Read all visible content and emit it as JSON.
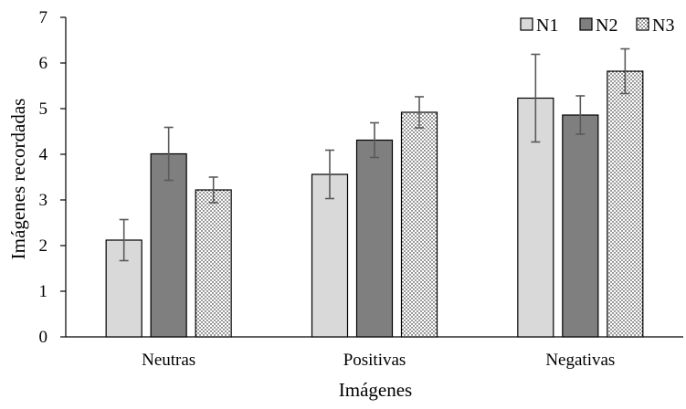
{
  "chart_data": {
    "type": "bar",
    "title": "",
    "xlabel": "Imágenes",
    "ylabel": "Imágenes recordadas",
    "ylim": [
      0,
      7
    ],
    "yticks": [
      0,
      1,
      2,
      3,
      4,
      5,
      6,
      7
    ],
    "categories": [
      "Neutras",
      "Positivas",
      "Negativas"
    ],
    "series": [
      {
        "name": "N1",
        "values": [
          2.12,
          3.56,
          5.23
        ],
        "errors": [
          0.45,
          0.53,
          0.96
        ],
        "color": "#d9d9d9",
        "pattern": "solid"
      },
      {
        "name": "N2",
        "values": [
          4.01,
          4.31,
          4.86
        ],
        "errors": [
          0.58,
          0.38,
          0.42
        ],
        "color": "#7f7f7f",
        "pattern": "solid"
      },
      {
        "name": "N3",
        "values": [
          3.22,
          4.92,
          5.82
        ],
        "errors": [
          0.28,
          0.34,
          0.49
        ],
        "color": "#ffffff",
        "pattern": "dots"
      }
    ],
    "legend_position": "top-right",
    "grid": false
  }
}
